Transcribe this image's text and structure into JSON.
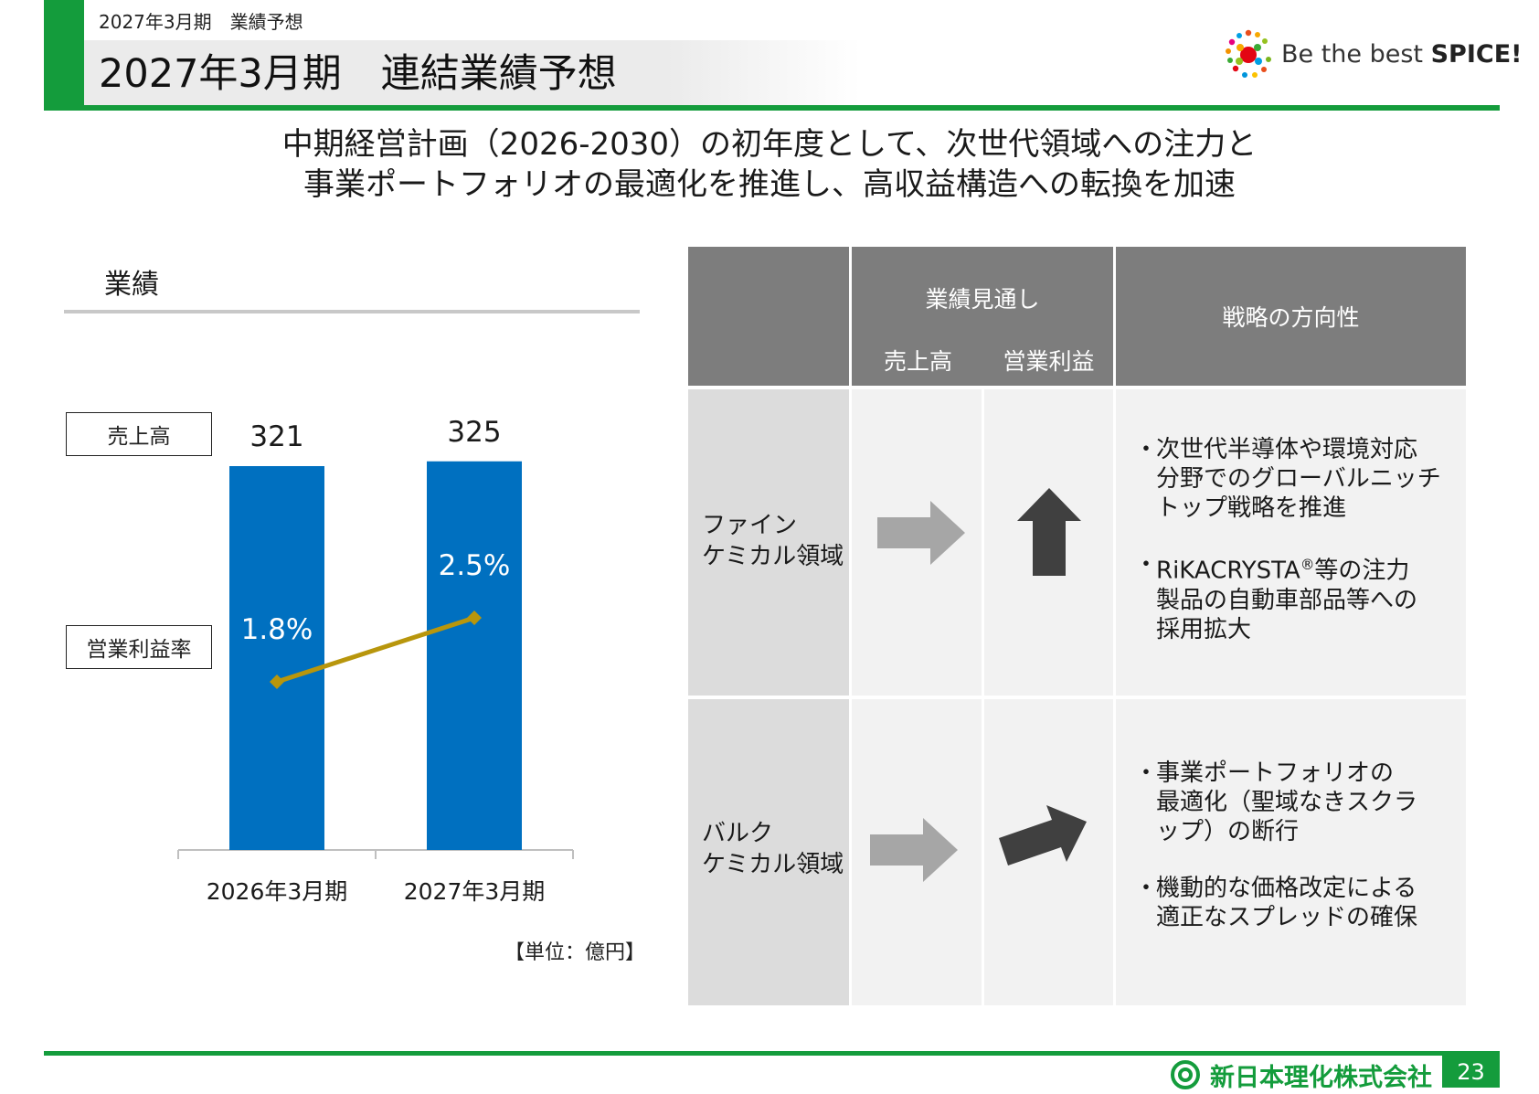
{
  "header": {
    "section": "2027年3月期　業績予想",
    "title": "2027年3月期　連結業績予想",
    "slogan_prefix": "Be the best ",
    "slogan_bold": "SPICE!"
  },
  "headline": {
    "line1": "中期経営計画（2026-2030）の初年度として、次世代領域への注力と",
    "line2": "事業ポートフォリオの最適化を推進し、高収益構造への転換を加速"
  },
  "performance": {
    "label": "業績",
    "legend_sales": "売上高",
    "legend_margin": "営業利益率",
    "unit": "【単位：億円】"
  },
  "chart_data": {
    "type": "bar",
    "categories": [
      "2026年3月期",
      "2027年3月期"
    ],
    "series": [
      {
        "name": "売上高",
        "type": "bar",
        "values": [
          321,
          325
        ],
        "labels": [
          "321",
          "325"
        ]
      },
      {
        "name": "営業利益率",
        "type": "line",
        "values": [
          1.8,
          2.5
        ],
        "labels": [
          "1.8%",
          "2.5%"
        ]
      }
    ],
    "colors": {
      "bar": "#0070c0",
      "line": "#b8960c"
    },
    "legend_placement": "left"
  },
  "table": {
    "header_outlook": "業績見通し",
    "header_sales": "売上高",
    "header_op": "営業利益",
    "header_strategy": "戦略の方向性",
    "rows": [
      {
        "name_line1": "ファイン",
        "name_line2": "ケミカル領域",
        "sales_icon": "arrow-right-icon",
        "op_icon": "arrow-up-icon",
        "bullets": [
          "次世代半導体や環境対応\n分野でのグローバルニッチ\nトップ戦略を推進",
          "RiKACRYSTA",
          "等の注力\n製品の自動車部品等への\n採用拡大"
        ],
        "registered_mark": "®"
      },
      {
        "name_line1": "バルク",
        "name_line2": "ケミカル領域",
        "sales_icon": "arrow-right-icon",
        "op_icon": "arrow-up-right-icon",
        "bullets": [
          "事業ポートフォリオの\n最適化（聖域なきスクラ\nップ）の断行",
          "機動的な価格改定による\n適正なスプレッドの確保"
        ]
      }
    ]
  },
  "footer": {
    "company": "新日本理化株式会社",
    "page": "23"
  }
}
